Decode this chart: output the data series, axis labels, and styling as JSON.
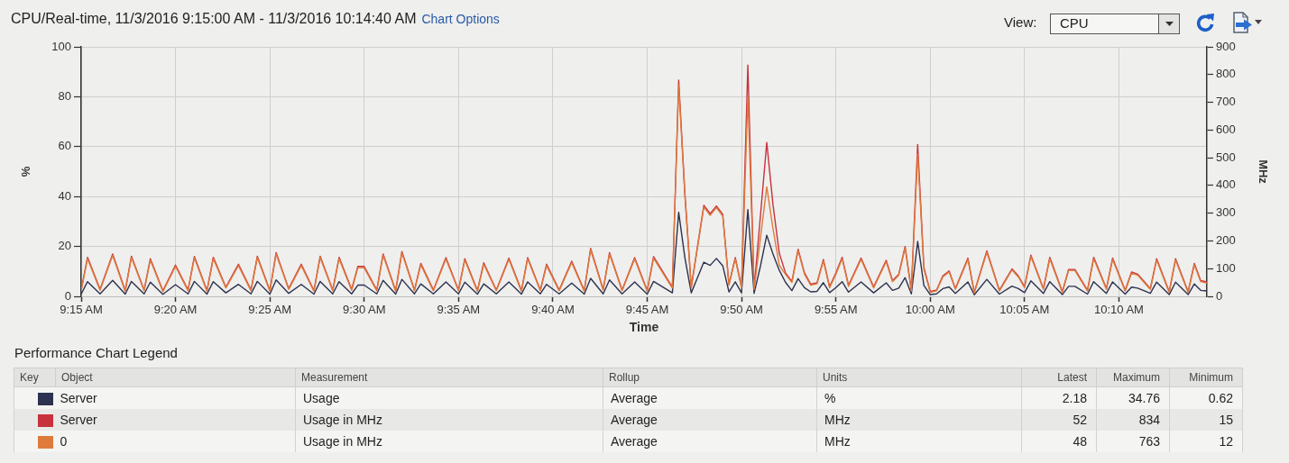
{
  "chart_data": {
    "type": "line",
    "title": "CPU/Real-time, 11/3/2016 9:15:00 AM - 11/3/2016 10:14:40 AM",
    "xlabel": "Time",
    "ylabel": "%",
    "y2label": "MHz",
    "legend_title": "Performance Chart Legend",
    "legend": "bottom",
    "grid": true,
    "xlim": [
      9.25,
      10.2444
    ],
    "xticks": [
      {
        "value": 9.25,
        "label": "9:15 AM"
      },
      {
        "value": 9.3333,
        "label": "9:20 AM"
      },
      {
        "value": 9.4167,
        "label": "9:25 AM"
      },
      {
        "value": 9.5,
        "label": "9:30 AM"
      },
      {
        "value": 9.5833,
        "label": "9:35 AM"
      },
      {
        "value": 9.6667,
        "label": "9:40 AM"
      },
      {
        "value": 9.75,
        "label": "9:45 AM"
      },
      {
        "value": 9.8333,
        "label": "9:50 AM"
      },
      {
        "value": 9.9167,
        "label": "9:55 AM"
      },
      {
        "value": 10,
        "label": "10:00 AM"
      },
      {
        "value": 10.0833,
        "label": "10:05 AM"
      },
      {
        "value": 10.1667,
        "label": "10:10 AM"
      }
    ],
    "ylim": [
      0,
      100
    ],
    "yticks": [
      0,
      20,
      40,
      60,
      80,
      100
    ],
    "y2lim": [
      0,
      900
    ],
    "y2ticks": [
      0,
      100,
      200,
      300,
      400,
      500,
      600,
      700,
      800,
      900
    ],
    "x": [
      9.25,
      9.2556,
      9.2667,
      9.2778,
      9.2889,
      9.2944,
      9.3056,
      9.3111,
      9.3222,
      9.3333,
      9.3444,
      9.35,
      9.3611,
      9.3667,
      9.3778,
      9.3889,
      9.4,
      9.4056,
      9.4167,
      9.4222,
      9.4333,
      9.4444,
      9.4556,
      9.4611,
      9.4722,
      9.4778,
      9.4889,
      9.4944,
      9.5,
      9.5111,
      9.5167,
      9.5278,
      9.5333,
      9.5444,
      9.55,
      9.5611,
      9.5722,
      9.5833,
      9.5889,
      9.6,
      9.6056,
      9.6167,
      9.6278,
      9.6389,
      9.6444,
      9.6556,
      9.6611,
      9.6722,
      9.6833,
      9.6944,
      9.7,
      9.7111,
      9.7167,
      9.7278,
      9.7389,
      9.75,
      9.7556,
      9.7722,
      9.7778,
      9.7833,
      9.7889,
      9.7944,
      9.8,
      9.8056,
      9.8111,
      9.8167,
      9.8222,
      9.8278,
      9.8333,
      9.8389,
      9.8444,
      9.85,
      9.8556,
      9.8611,
      9.8667,
      9.8722,
      9.8778,
      9.8833,
      9.8889,
      9.8944,
      9.9,
      9.9056,
      9.9111,
      9.9167,
      9.9222,
      9.9278,
      9.9389,
      9.95,
      9.9611,
      9.9667,
      9.9722,
      9.9778,
      9.9833,
      9.9889,
      9.9944,
      10,
      10.0056,
      10.0111,
      10.0167,
      10.0222,
      10.0333,
      10.0389,
      10.05,
      10.0611,
      10.0722,
      10.0778,
      10.0833,
      10.0889,
      10.1,
      10.1056,
      10.1167,
      10.1222,
      10.1278,
      10.1389,
      10.1444,
      10.1556,
      10.1611,
      10.1722,
      10.1778,
      10.1833,
      10.1944,
      10.2,
      10.2111,
      10.2167,
      10.2278,
      10.2333,
      10.2389,
      10.2444
    ],
    "series": [
      {
        "name": "Server",
        "color": "#2d3250",
        "values": [
          0.9,
          5.9,
          1,
          6.4,
          0.9,
          6,
          1,
          5.7,
          0.8,
          4.7,
          1,
          6,
          0.9,
          5.9,
          1.4,
          4.8,
          1,
          6,
          0.9,
          6.6,
          1.2,
          4.8,
          0.9,
          6,
          1,
          5.9,
          1,
          4.5,
          4.5,
          1,
          6.4,
          0.9,
          6.8,
          1,
          5,
          1,
          5.8,
          1,
          5.7,
          0.9,
          5,
          1,
          5.8,
          0.9,
          5.8,
          1,
          4.8,
          1,
          5.3,
          0.9,
          7.2,
          1,
          6.6,
          1,
          5.8,
          0.9,
          6,
          1.4,
          33.7,
          15.4,
          1.4,
          7.5,
          13.7,
          12.4,
          15.2,
          12.3,
          1.8,
          5.8,
          1.4,
          34.76,
          1.2,
          12.1,
          24.5,
          17,
          10.4,
          5.6,
          2.3,
          7.1,
          3.5,
          1.8,
          2,
          5.5,
          1.5,
          3.5,
          5.9,
          1.7,
          5.8,
          1.4,
          5.4,
          2.4,
          3.3,
          7.5,
          1,
          22,
          4.4,
          0.7,
          1,
          3.1,
          3.8,
          1.2,
          5.8,
          0.62,
          6.8,
          0.9,
          4.1,
          3.1,
          1.5,
          6.2,
          1.2,
          5.9,
          0.7,
          4,
          4,
          0.9,
          5.9,
          1.2,
          5.8,
          0.9,
          3.7,
          3.3,
          1.2,
          5.7,
          0.7,
          5.7,
          0.7,
          5,
          2.4,
          2.18
        ]
      },
      {
        "name": "Server",
        "color": "#c8323c",
        "axis": "y2",
        "values": [
          23,
          141,
          25,
          153,
          21,
          145,
          23,
          136,
          20,
          113,
          23,
          144,
          21,
          141,
          33,
          116,
          23,
          145,
          21,
          158,
          28,
          116,
          21,
          145,
          23,
          141,
          25,
          108,
          108,
          23,
          153,
          21,
          162,
          23,
          119,
          23,
          140,
          23,
          136,
          21,
          121,
          23,
          138,
          21,
          140,
          23,
          116,
          23,
          127,
          21,
          173,
          25,
          158,
          23,
          140,
          21,
          143,
          33,
          780,
          370,
          34,
          180,
          328,
          298,
          326,
          296,
          44,
          140,
          34,
          834,
          28,
          290,
          555,
          330,
          155,
          84,
          54,
          170,
          85,
          44,
          49,
          133,
          35,
          85,
          141,
          40,
          138,
          34,
          130,
          57,
          80,
          180,
          23,
          548,
          105,
          17,
          23,
          74,
          92,
          28,
          138,
          15,
          164,
          22,
          99,
          74,
          35,
          149,
          28,
          141,
          17,
          97,
          97,
          22,
          141,
          28,
          138,
          22,
          88,
          80,
          28,
          136,
          17,
          136,
          17,
          119,
          57,
          52
        ]
      },
      {
        "name": "0",
        "color": "#de7b3c",
        "axis": "y2",
        "values": [
          20,
          136,
          22,
          148,
          18,
          140,
          20,
          131,
          17,
          108,
          20,
          139,
          18,
          136,
          30,
          111,
          20,
          140,
          18,
          153,
          25,
          111,
          18,
          140,
          20,
          136,
          22,
          103,
          103,
          20,
          148,
          18,
          157,
          20,
          114,
          20,
          135,
          20,
          131,
          18,
          116,
          20,
          133,
          18,
          135,
          20,
          111,
          20,
          122,
          18,
          168,
          22,
          153,
          20,
          135,
          18,
          138,
          30,
          763,
          360,
          30,
          175,
          322,
          292,
          320,
          290,
          40,
          135,
          30,
          720,
          25,
          210,
          395,
          244,
          112,
          79,
          50,
          165,
          80,
          40,
          45,
          128,
          31,
          80,
          136,
          36,
          133,
          30,
          125,
          53,
          76,
          175,
          19,
          514,
          98,
          14,
          20,
          70,
          88,
          25,
          133,
          12,
          159,
          19,
          95,
          70,
          31,
          144,
          25,
          136,
          14,
          93,
          93,
          19,
          136,
          25,
          133,
          19,
          84,
          76,
          25,
          131,
          14,
          131,
          14,
          114,
          53,
          48
        ]
      }
    ],
    "annotations": [
      "Chart Options",
      "View:",
      "CPU",
      "Key",
      "Object",
      "Measurement",
      "Rollup",
      "Units",
      "Latest",
      "Maximum",
      "Minimum",
      "Usage",
      "Average",
      "%",
      "2.18",
      "34.76",
      "0.62",
      "Usage in MHz",
      "Average",
      "MHz",
      "52",
      "834",
      "15",
      "Usage in MHz",
      "Average",
      "MHz",
      "48",
      "763",
      "12"
    ]
  }
}
